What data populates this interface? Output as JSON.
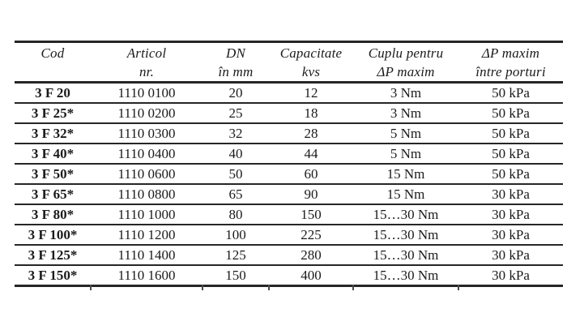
{
  "colors": {
    "text": "#1b1b1b",
    "rule": "#262626",
    "background": "#ffffff"
  },
  "table": {
    "columns": [
      {
        "line1": "Cod",
        "line2": ""
      },
      {
        "line1": "Articol",
        "line2": "nr."
      },
      {
        "line1": "DN",
        "line2": "în mm"
      },
      {
        "line1": "Capacitate",
        "line2": "kvs"
      },
      {
        "line1": "Cuplu pentru",
        "line2": "ΔP maxim"
      },
      {
        "line1": "ΔP maxim",
        "line2": "între porturi"
      }
    ],
    "rows": [
      [
        "3 F 20",
        "1110 0100",
        "20",
        "12",
        "3 Nm",
        "50 kPa"
      ],
      [
        "3 F 25*",
        "1110 0200",
        "25",
        "18",
        "3 Nm",
        "50 kPa"
      ],
      [
        "3 F 32*",
        "1110 0300",
        "32",
        "28",
        "5 Nm",
        "50 kPa"
      ],
      [
        "3 F 40*",
        "1110 0400",
        "40",
        "44",
        "5 Nm",
        "50 kPa"
      ],
      [
        "3 F 50*",
        "1110 0600",
        "50",
        "60",
        "15 Nm",
        "50 kPa"
      ],
      [
        "3 F 65*",
        "1110 0800",
        "65",
        "90",
        "15 Nm",
        "30 kPa"
      ],
      [
        "3 F 80*",
        "1110 1000",
        "80",
        "150",
        "15…30 Nm",
        "30 kPa"
      ],
      [
        "3 F 100*",
        "1110 1200",
        "100",
        "225",
        "15…30 Nm",
        "30 kPa"
      ],
      [
        "3 F 125*",
        "1110 1400",
        "125",
        "280",
        "15…30 Nm",
        "30 kPa"
      ],
      [
        "3 F 150*",
        "1110 1600",
        "150",
        "400",
        "15…30 Nm",
        "30 kPa"
      ]
    ]
  }
}
